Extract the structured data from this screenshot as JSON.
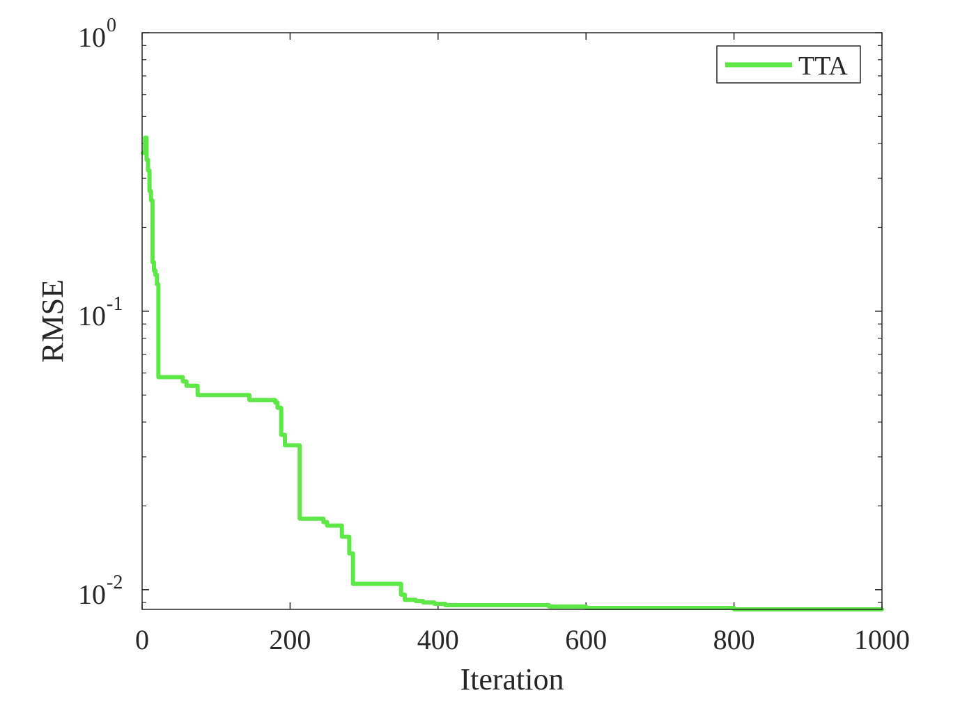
{
  "chart_data": {
    "type": "line",
    "title": "",
    "xlabel": "Iteration",
    "ylabel": "RMSE",
    "xlim": [
      0,
      1000
    ],
    "ylim": [
      0.0085,
      1
    ],
    "yscale": "log",
    "grid": false,
    "legend_position": "top-right",
    "x_ticks": [
      {
        "value": 0,
        "label": "0"
      },
      {
        "value": 200,
        "label": "200"
      },
      {
        "value": 400,
        "label": "400"
      },
      {
        "value": 600,
        "label": "600"
      },
      {
        "value": 800,
        "label": "800"
      },
      {
        "value": 1000,
        "label": "1000"
      }
    ],
    "y_ticks": [
      {
        "value": 1,
        "base": "10",
        "exponent": "0"
      },
      {
        "value": 0.1,
        "base": "10",
        "exponent": "-1"
      },
      {
        "value": 0.01,
        "base": "10",
        "exponent": "-2"
      }
    ],
    "series": [
      {
        "name": "TTA",
        "color": "#5de848",
        "step": true,
        "x": [
          1,
          4,
          6,
          8,
          10,
          12,
          14,
          16,
          18,
          20,
          22,
          25,
          30,
          55,
          60,
          75,
          80,
          140,
          145,
          170,
          180,
          183,
          188,
          193,
          213,
          220,
          245,
          250,
          265,
          270,
          275,
          280,
          285,
          290,
          350,
          355,
          370,
          380,
          395,
          410,
          450,
          500,
          550,
          600,
          700,
          800,
          850,
          900,
          1000
        ],
        "y": [
          0.37,
          0.42,
          0.35,
          0.32,
          0.27,
          0.25,
          0.15,
          0.14,
          0.135,
          0.125,
          0.058,
          0.058,
          0.058,
          0.056,
          0.054,
          0.05,
          0.05,
          0.05,
          0.048,
          0.048,
          0.047,
          0.045,
          0.036,
          0.033,
          0.018,
          0.018,
          0.0175,
          0.017,
          0.017,
          0.0155,
          0.0155,
          0.0135,
          0.0105,
          0.0105,
          0.0096,
          0.0092,
          0.0091,
          0.009,
          0.0089,
          0.0088,
          0.0088,
          0.0088,
          0.0087,
          0.0086,
          0.0086,
          0.0085,
          0.0085,
          0.0085,
          0.0085
        ]
      }
    ]
  }
}
